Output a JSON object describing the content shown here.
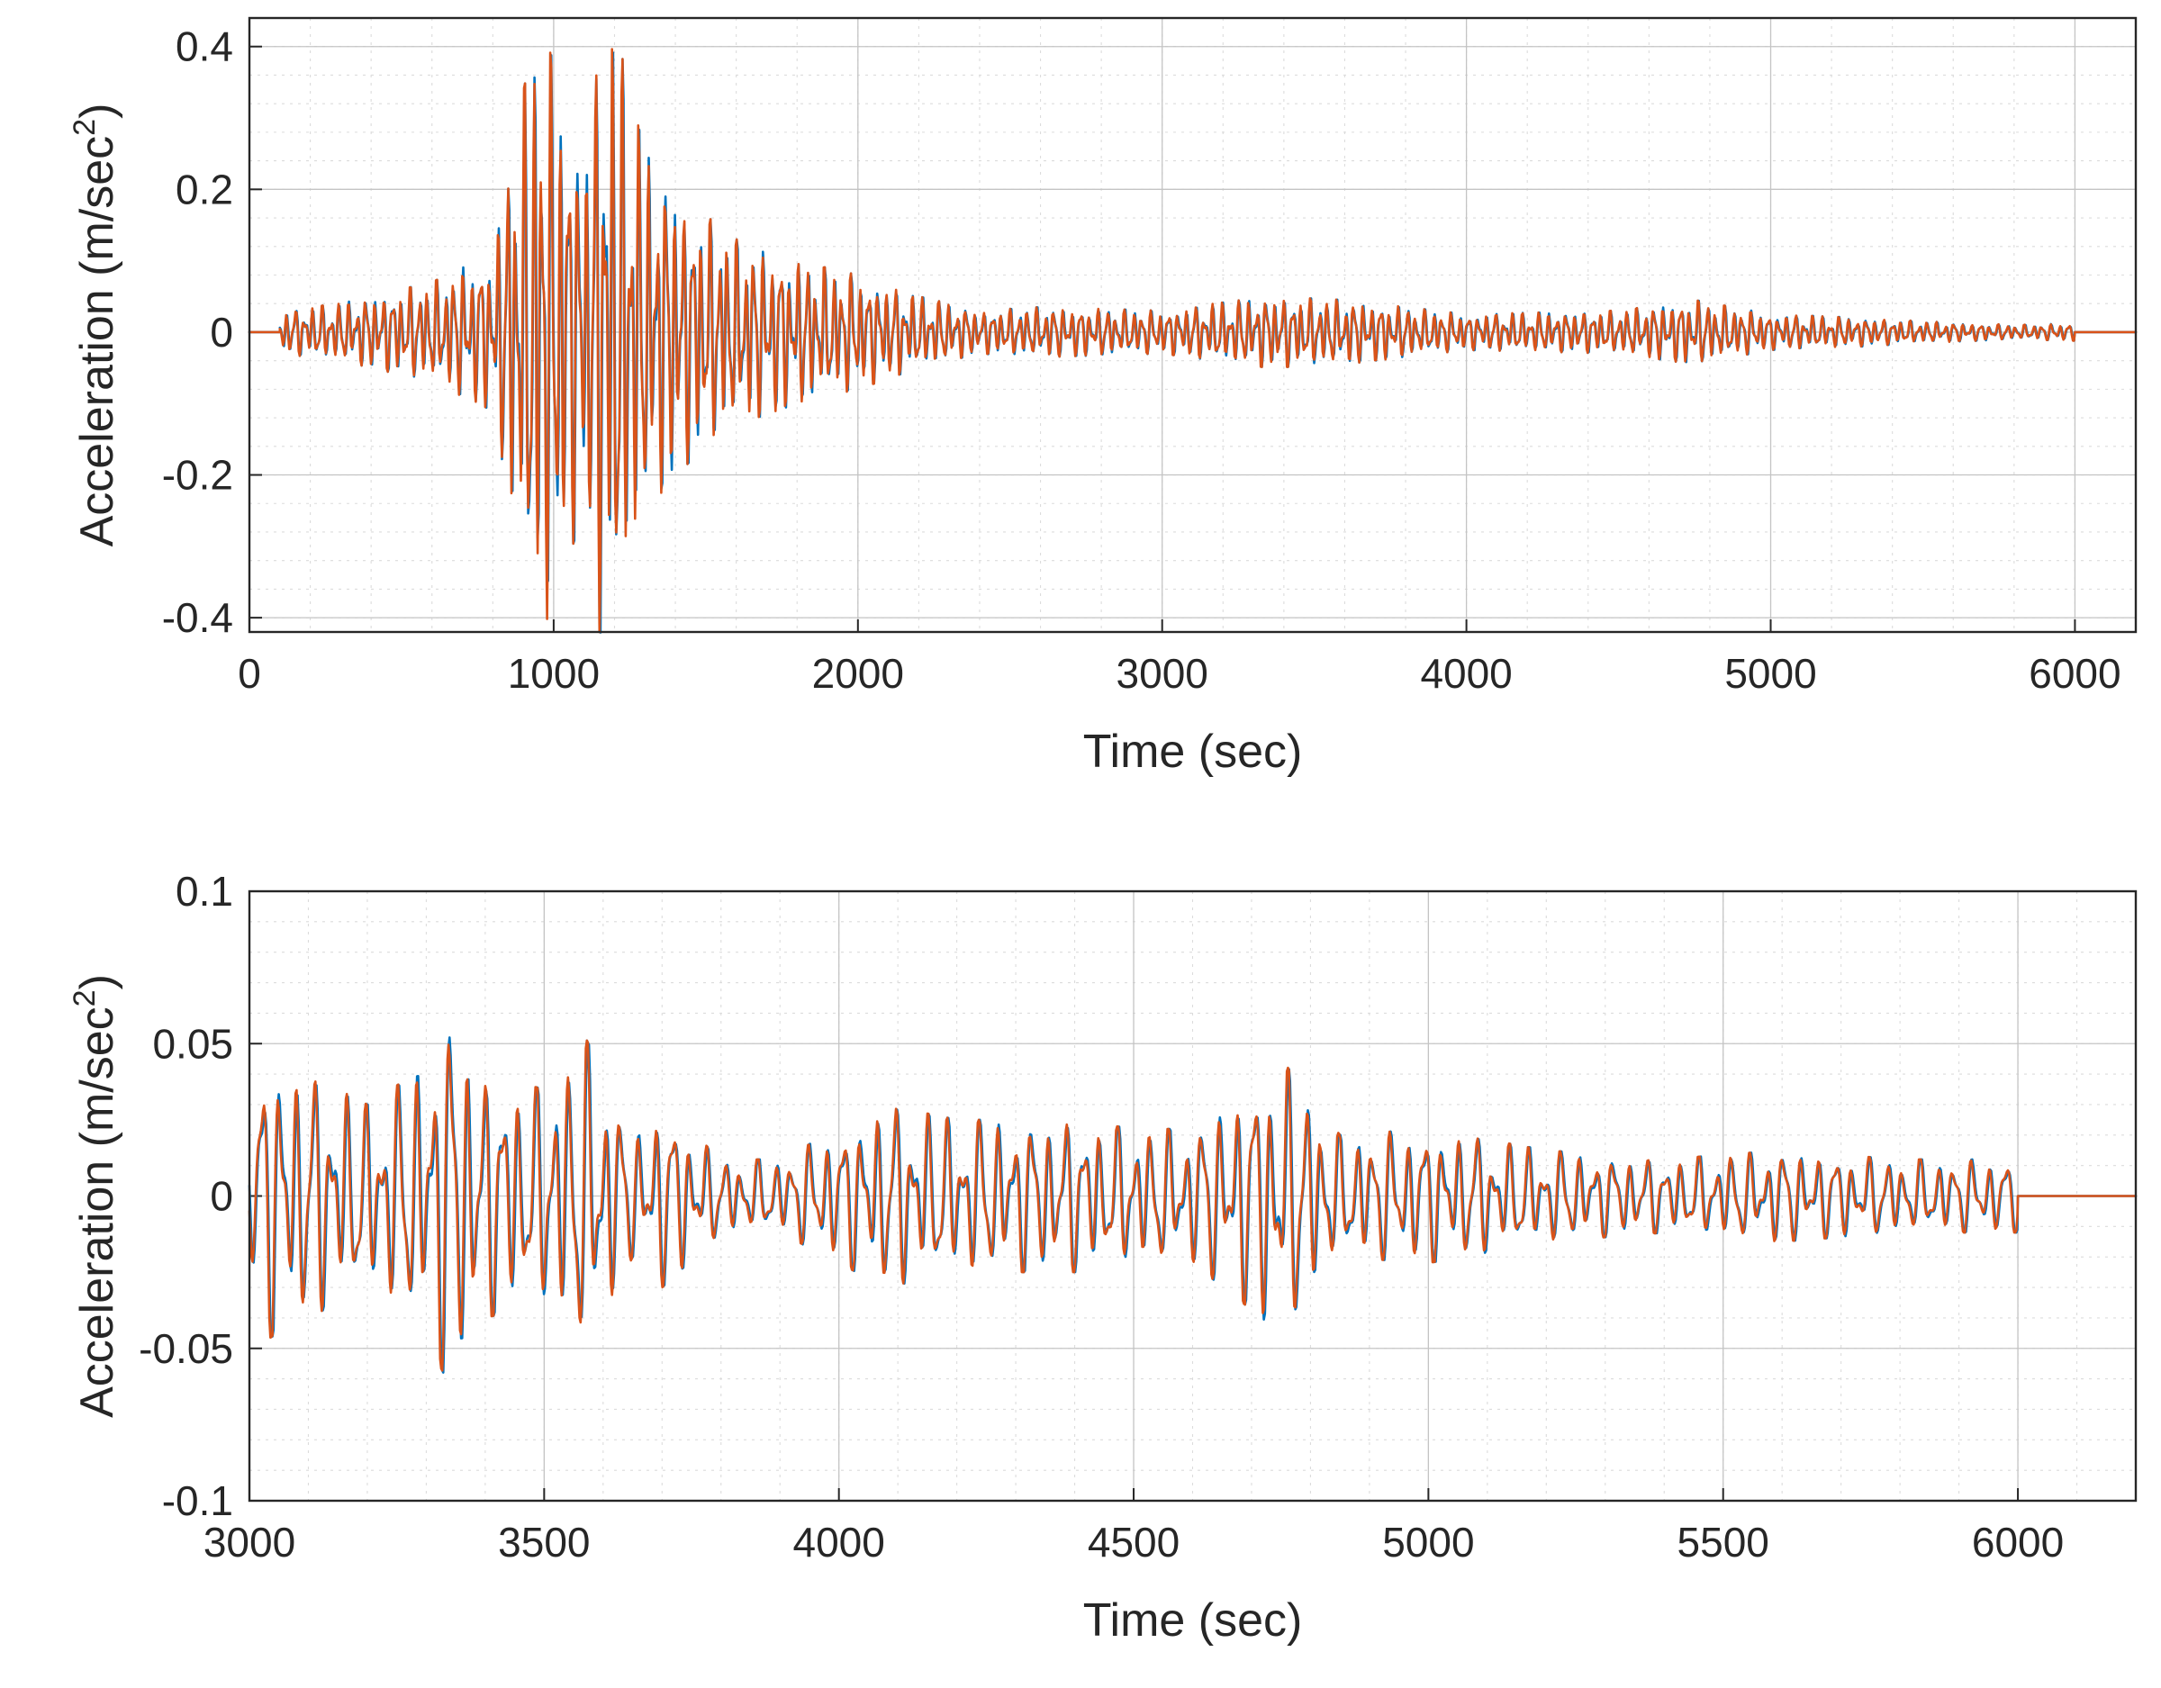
{
  "chart_data": [
    {
      "type": "line",
      "xlabel": "Time (sec)",
      "ylabel": "Acceleration (m/sec",
      "ylabel_superscript": "2",
      "ylabel_suffix": ")",
      "xlim": [
        0,
        6200
      ],
      "ylim": [
        -0.42,
        0.44
      ],
      "xticks": [
        0,
        1000,
        2000,
        3000,
        4000,
        5000,
        6000
      ],
      "xtick_labels": [
        "0",
        "1000",
        "2000",
        "3000",
        "4000",
        "5000",
        "6000"
      ],
      "yticks": [
        -0.4,
        -0.2,
        0,
        0.2,
        0.4
      ],
      "ytick_labels": [
        "-0.4",
        "-0.2",
        "0",
        "0.2",
        "0.4"
      ],
      "grid": true,
      "minor_grid": true,
      "colors": [
        "#0072BD",
        "#D95319"
      ],
      "envelope": {
        "x": [
          100,
          300,
          600,
          800,
          880,
          950,
          1000,
          1100,
          1150,
          1200,
          1300,
          1450,
          1600,
          1800,
          2000,
          2200,
          2400,
          2600,
          3000,
          3350,
          3600,
          4000,
          4500,
          4750,
          5000,
          5300,
          5500,
          5800,
          6000
        ],
        "amp": [
          0.03,
          0.04,
          0.07,
          0.11,
          0.3,
          0.43,
          0.38,
          0.25,
          0.42,
          0.43,
          0.25,
          0.18,
          0.13,
          0.1,
          0.08,
          0.05,
          0.03,
          0.035,
          0.03,
          0.05,
          0.045,
          0.025,
          0.03,
          0.045,
          0.025,
          0.02,
          0.015,
          0.01,
          0.012
        ]
      }
    },
    {
      "type": "line",
      "xlabel": "Time (sec)",
      "ylabel": "Acceleration (m/sec",
      "ylabel_superscript": "2",
      "ylabel_suffix": ")",
      "xlim": [
        3000,
        6200
      ],
      "ylim": [
        -0.1,
        0.1
      ],
      "xticks": [
        3000,
        3500,
        4000,
        4500,
        5000,
        5500,
        6000
      ],
      "xtick_labels": [
        "3000",
        "3500",
        "4000",
        "4500",
        "5000",
        "5500",
        "6000"
      ],
      "yticks": [
        -0.1,
        -0.05,
        0,
        0.05,
        0.1
      ],
      "ytick_labels": [
        "-0.1",
        "-0.05",
        "0",
        "0.05",
        "0.1"
      ],
      "grid": true,
      "minor_grid": true,
      "colors": [
        "#0072BD",
        "#D95319"
      ],
      "envelope": {
        "x": [
          3000,
          3020,
          3100,
          3200,
          3280,
          3340,
          3400,
          3500,
          3570,
          3650,
          3700,
          3800,
          3900,
          4080,
          4200,
          4400,
          4500,
          4600,
          4750,
          4850,
          5000,
          5200,
          5400,
          5600,
          5800,
          6000
        ],
        "amp": [
          0.02,
          0.048,
          0.04,
          0.03,
          0.04,
          0.062,
          0.04,
          0.035,
          0.052,
          0.02,
          0.03,
          0.012,
          0.012,
          0.03,
          0.025,
          0.025,
          0.022,
          0.022,
          0.045,
          0.02,
          0.022,
          0.015,
          0.012,
          0.015,
          0.012,
          0.012
        ]
      }
    }
  ]
}
